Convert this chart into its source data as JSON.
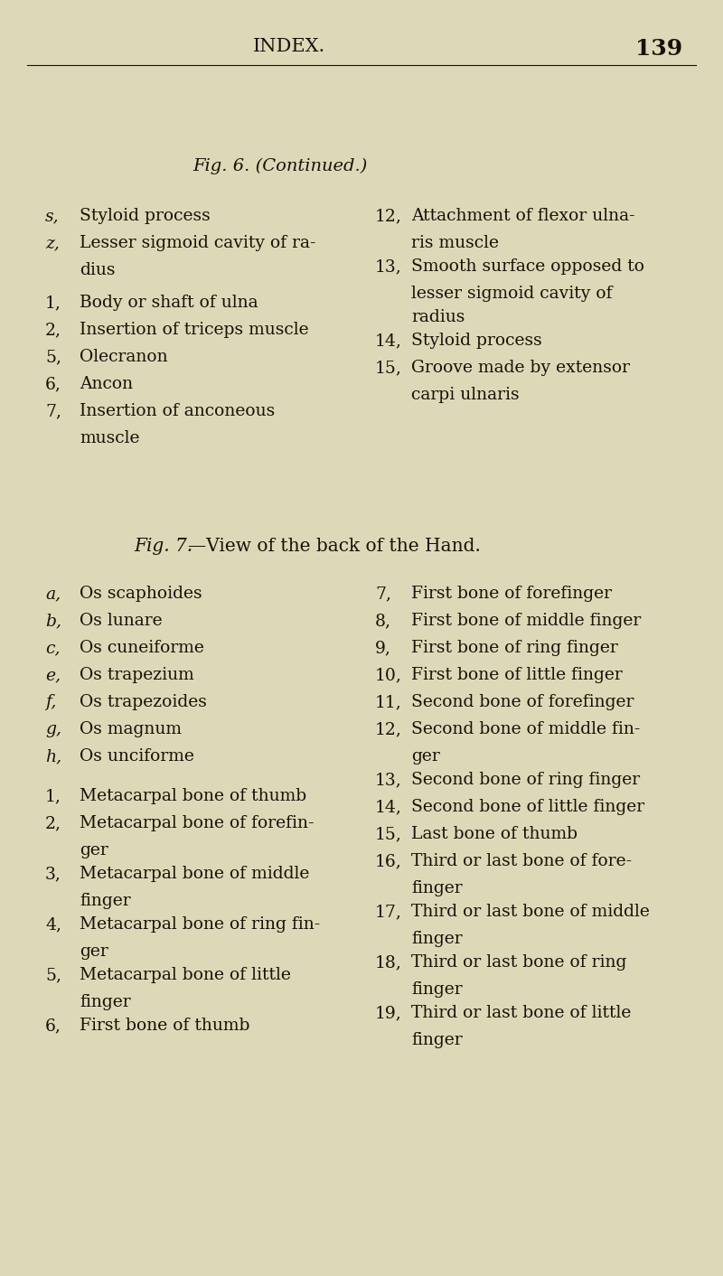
{
  "bg_color": "#ddd9b8",
  "text_color": "#1a1008",
  "page_width": 8.0,
  "page_height": 14.12,
  "dpi": 100,
  "header": "INDEX.",
  "page_number": "139",
  "fig6_title": "Fig. 6. (Continued.)",
  "fig7_title_italic": "Fig. 7.",
  "fig7_title_rest": "—View of the back of the Hand.",
  "fig6_left": [
    [
      "s,",
      "Styloid process",
      true
    ],
    [
      "z,",
      "Lesser sigmoid cavity of ra-",
      true
    ],
    [
      "",
      "dius",
      false
    ],
    [
      "",
      "",
      false
    ],
    [
      "1,",
      "Body or shaft of ulna",
      false
    ],
    [
      "2,",
      "Insertion of triceps muscle",
      false
    ],
    [
      "5,",
      "Olecranon",
      false
    ],
    [
      "6,",
      "Ancon",
      false
    ],
    [
      "7,",
      "Insertion of anconeous",
      false
    ],
    [
      "",
      "muscle",
      false
    ]
  ],
  "fig6_right": [
    [
      "12,",
      "Attachment of flexor ulna-"
    ],
    [
      "",
      "ris muscle"
    ],
    [
      "13,",
      "Smooth surface opposed to"
    ],
    [
      "",
      "lesser sigmoid cavity of"
    ],
    [
      "",
      "radius"
    ],
    [
      "14,",
      "Styloid process"
    ],
    [
      "15,",
      "Groove made by extensor"
    ],
    [
      "",
      "carpi ulnaris"
    ]
  ],
  "fig7_left_alpha": [
    [
      "a,",
      "Os scaphoides"
    ],
    [
      "b,",
      "Os lunare"
    ],
    [
      "c,",
      "Os cuneiforme"
    ],
    [
      "e,",
      "Os trapezium"
    ],
    [
      "f,",
      "Os trapezoides"
    ],
    [
      "g,",
      "Os magnum"
    ],
    [
      "h,",
      "Os unciforme"
    ]
  ],
  "fig7_left_num": [
    [
      "1,",
      "Metacarpal bone of thumb"
    ],
    [
      "2,",
      "Metacarpal bone of forefin-"
    ],
    [
      "",
      "ger"
    ],
    [
      "3,",
      "Metacarpal bone of middle"
    ],
    [
      "",
      "finger"
    ],
    [
      "4,",
      "Metacarpal bone of ring fin-"
    ],
    [
      "",
      "ger"
    ],
    [
      "5,",
      "Metacarpal bone of little"
    ],
    [
      "",
      "finger"
    ],
    [
      "6,",
      "First bone of thumb"
    ]
  ],
  "fig7_right": [
    [
      "7,",
      "First bone of forefinger"
    ],
    [
      "8,",
      "First bone of middle finger"
    ],
    [
      "9,",
      "First bone of ring finger"
    ],
    [
      "10,",
      "First bone of little finger"
    ],
    [
      "11,",
      "Second bone of forefinger"
    ],
    [
      "12,",
      "Second bone of middle fin-"
    ],
    [
      "",
      "ger"
    ],
    [
      "13,",
      "Second bone of ring finger"
    ],
    [
      "14,",
      "Second bone of little finger"
    ],
    [
      "15,",
      "Last bone of thumb"
    ],
    [
      "16,",
      "Third or last bone of fore-"
    ],
    [
      "",
      "finger"
    ],
    [
      "17,",
      "Third or last bone of middle"
    ],
    [
      "",
      "finger"
    ],
    [
      "18,",
      "Third or last bone of ring"
    ],
    [
      "",
      "finger"
    ],
    [
      "19,",
      "Third or last bone of little"
    ],
    [
      "",
      "finger"
    ]
  ]
}
